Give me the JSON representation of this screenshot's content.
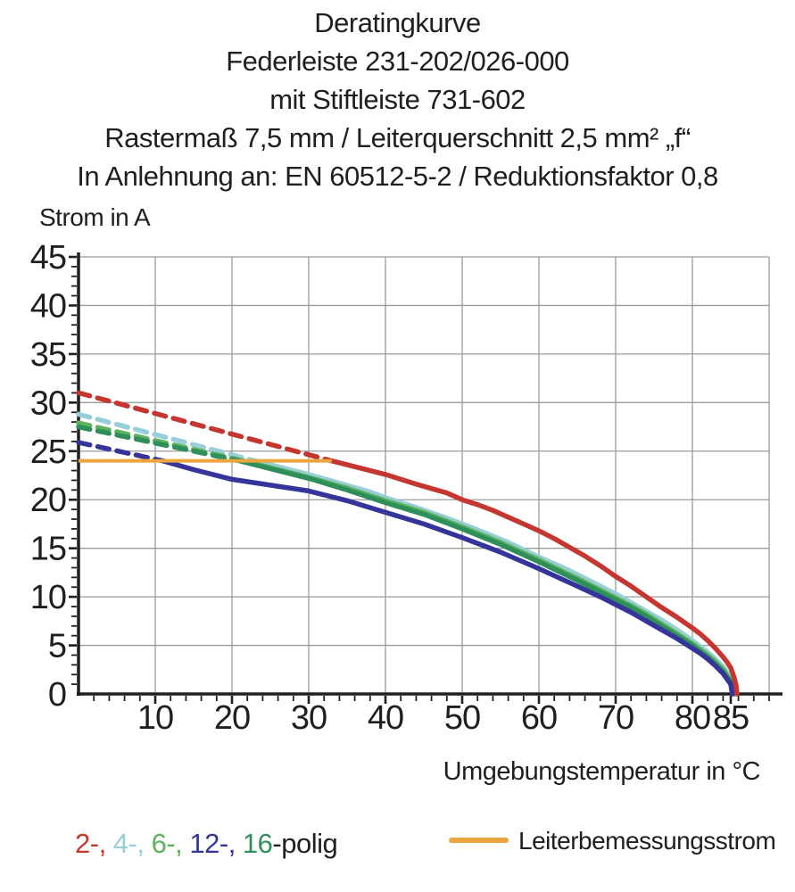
{
  "chart_data": {
    "type": "line",
    "header_lines": [
      "Deratingkurve",
      "Federleiste 231-202/026-000",
      "mit Stiftleiste 731-602",
      "Rastermaß 7,5 mm / Leiterquerschnitt 2,5 mm² „f“",
      "In Anlehnung an: EN 60512-5-2 / Reduktionsfaktor 0,8"
    ],
    "ylabel": "Strom in A",
    "xlabel": "Umgebungstemperatur in °C",
    "xlim": [
      0,
      90
    ],
    "ylim": [
      0,
      45
    ],
    "x_major_ticks": [
      10,
      20,
      30,
      40,
      50,
      60,
      70,
      80,
      85
    ],
    "y_major_ticks": [
      0,
      5,
      10,
      15,
      20,
      25,
      30,
      35,
      40,
      45
    ],
    "x_minor_tick_step": 2,
    "y_minor_tick_step": 1,
    "x_gridlines": [
      10,
      20,
      30,
      40,
      50,
      60,
      70,
      80,
      90
    ],
    "y_gridlines": [
      5,
      10,
      15,
      20,
      25,
      30,
      35,
      40,
      45
    ],
    "grid": true,
    "colors": {
      "axis": "#1f1f1f",
      "grid": "#9b9b9b",
      "red": "#c53630",
      "cyan": "#96cfd8",
      "green": "#5db25e",
      "darkgreen": "#2f8f5a",
      "navy": "#34349a",
      "orange": "#eca53f"
    },
    "series": [
      {
        "name": "4-polig",
        "color": "#96cfd8",
        "segments": [
          {
            "style": "dashed",
            "points": [
              [
                0,
                28.8
              ],
              [
                23,
                24
              ]
            ]
          },
          {
            "style": "solid",
            "points": [
              [
                23,
                24
              ],
              [
                26,
                23.4
              ],
              [
                30,
                22.6
              ],
              [
                34,
                21.7
              ],
              [
                38,
                20.8
              ],
              [
                40,
                20.2
              ],
              [
                44,
                19.2
              ],
              [
                48,
                18.1
              ],
              [
                50,
                17.5
              ],
              [
                52,
                16.9
              ],
              [
                56,
                15.6
              ],
              [
                60,
                14.1
              ],
              [
                64,
                12.7
              ],
              [
                66,
                11.9
              ],
              [
                68,
                11.1
              ],
              [
                70,
                10.3
              ],
              [
                72,
                9.4
              ],
              [
                74,
                8.5
              ],
              [
                76,
                7.6
              ],
              [
                78,
                6.6
              ],
              [
                80,
                5.5
              ],
              [
                81,
                4.9
              ],
              [
                82,
                4.3
              ],
              [
                83,
                3.6
              ],
              [
                84,
                2.8
              ],
              [
                85,
                1.7
              ],
              [
                85.3,
                0.9
              ],
              [
                85.5,
                0
              ]
            ]
          }
        ]
      },
      {
        "name": "6-polig",
        "color": "#5db25e",
        "segments": [
          {
            "style": "dashed",
            "points": [
              [
                0,
                27.9
              ],
              [
                21.5,
                24
              ]
            ]
          },
          {
            "style": "solid",
            "points": [
              [
                21.5,
                24
              ],
              [
                25,
                23.3
              ],
              [
                30,
                22.3
              ],
              [
                35,
                21.2
              ],
              [
                40,
                19.9
              ],
              [
                45,
                18.7
              ],
              [
                50,
                17.2
              ],
              [
                55,
                15.6
              ],
              [
                60,
                13.8
              ],
              [
                65,
                11.9
              ],
              [
                70,
                9.9
              ],
              [
                72,
                9.1
              ],
              [
                74,
                8.2
              ],
              [
                76,
                7.2
              ],
              [
                78,
                6.2
              ],
              [
                80,
                5.2
              ],
              [
                81,
                4.6
              ],
              [
                82,
                4.0
              ],
              [
                83,
                3.3
              ],
              [
                84,
                2.5
              ],
              [
                85,
                1.4
              ],
              [
                85.3,
                0.7
              ],
              [
                85.4,
                0
              ]
            ]
          }
        ]
      },
      {
        "name": "16-polig",
        "color": "#2f8f5a",
        "segments": [
          {
            "style": "dashed",
            "points": [
              [
                0,
                27.5
              ],
              [
                21,
                24
              ]
            ]
          },
          {
            "style": "solid",
            "points": [
              [
                21,
                24
              ],
              [
                25,
                23.2
              ],
              [
                30,
                22.2
              ],
              [
                35,
                21.0
              ],
              [
                40,
                19.7
              ],
              [
                45,
                18.5
              ],
              [
                50,
                17.0
              ],
              [
                55,
                15.4
              ],
              [
                60,
                13.6
              ],
              [
                65,
                11.7
              ],
              [
                70,
                9.7
              ],
              [
                72,
                8.9
              ],
              [
                74,
                8.0
              ],
              [
                76,
                7.0
              ],
              [
                78,
                6.0
              ],
              [
                80,
                5.0
              ],
              [
                81,
                4.4
              ],
              [
                82,
                3.8
              ],
              [
                83,
                3.1
              ],
              [
                84,
                2.3
              ],
              [
                85,
                1.2
              ],
              [
                85.3,
                0.5
              ],
              [
                85.4,
                0
              ]
            ]
          }
        ]
      },
      {
        "name": "12-polig",
        "color": "#34349a",
        "segments": [
          {
            "style": "dashed",
            "points": [
              [
                0,
                25.9
              ],
              [
                11,
                24
              ]
            ]
          },
          {
            "style": "solid",
            "points": [
              [
                11,
                24
              ],
              [
                15,
                23.1
              ],
              [
                20,
                22.1
              ],
              [
                25,
                21.5
              ],
              [
                30,
                20.9
              ],
              [
                35,
                19.9
              ],
              [
                40,
                18.7
              ],
              [
                45,
                17.5
              ],
              [
                50,
                16.1
              ],
              [
                55,
                14.6
              ],
              [
                60,
                12.9
              ],
              [
                65,
                11.1
              ],
              [
                68,
                10.0
              ],
              [
                70,
                9.2
              ],
              [
                72,
                8.4
              ],
              [
                74,
                7.5
              ],
              [
                76,
                6.6
              ],
              [
                78,
                5.7
              ],
              [
                80,
                4.7
              ],
              [
                81,
                4.2
              ],
              [
                82,
                3.6
              ],
              [
                83,
                2.9
              ],
              [
                84,
                2.1
              ],
              [
                85,
                1.0
              ],
              [
                85.2,
                0
              ]
            ]
          }
        ]
      },
      {
        "name": "2-polig",
        "color": "#c53630",
        "segments": [
          {
            "style": "dashed",
            "points": [
              [
                0,
                31
              ],
              [
                33,
                24
              ]
            ]
          },
          {
            "style": "solid",
            "points": [
              [
                33,
                24
              ],
              [
                36,
                23.4
              ],
              [
                40,
                22.6
              ],
              [
                44,
                21.6
              ],
              [
                48,
                20.7
              ],
              [
                50,
                20.0
              ],
              [
                52,
                19.5
              ],
              [
                54,
                18.9
              ],
              [
                56,
                18.2
              ],
              [
                58,
                17.5
              ],
              [
                60,
                16.8
              ],
              [
                62,
                16.0
              ],
              [
                64,
                15.1
              ],
              [
                66,
                14.2
              ],
              [
                68,
                13.2
              ],
              [
                70,
                12.1
              ],
              [
                72,
                11.1
              ],
              [
                74,
                10.0
              ],
              [
                76,
                8.9
              ],
              [
                78,
                7.9
              ],
              [
                80,
                6.8
              ],
              [
                81,
                6.2
              ],
              [
                82,
                5.5
              ],
              [
                83,
                4.7
              ],
              [
                84,
                3.8
              ],
              [
                84.5,
                3.3
              ],
              [
                85,
                2.7
              ],
              [
                85.4,
                1.8
              ],
              [
                85.7,
                0.9
              ],
              [
                85.8,
                0
              ]
            ]
          }
        ]
      }
    ],
    "rated_current_line": {
      "label": "Leiterbemessungsstrom",
      "color": "#eca53f",
      "y": 24,
      "x_start": 0,
      "x_end": 33
    }
  },
  "legend": {
    "pole_items": [
      {
        "text": "2-,",
        "color": "#c53630"
      },
      {
        "text": "4-,",
        "color": "#96cfd8"
      },
      {
        "text": "6-,",
        "color": "#5db25e"
      },
      {
        "text": "12-,",
        "color": "#34349a"
      },
      {
        "text": "16",
        "color": "#2f8f5a"
      }
    ],
    "suffix": {
      "text": "-polig",
      "color": "#1f1f1f"
    },
    "rated_label": "Leiterbemessungsstrom"
  }
}
